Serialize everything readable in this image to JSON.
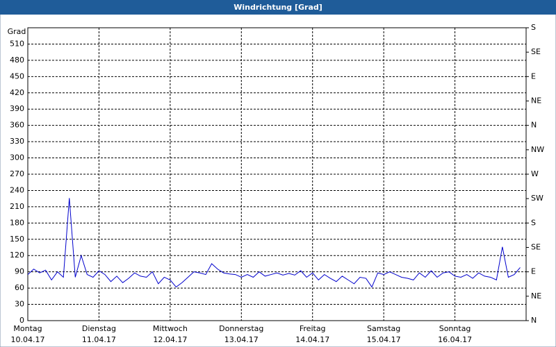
{
  "chart_data": {
    "type": "line",
    "title": "Windrichtung [Grad]",
    "y_label": "Grad",
    "x": [
      0,
      2,
      4,
      6,
      8,
      10,
      12,
      14,
      16,
      18,
      20,
      22,
      24,
      26,
      28,
      30,
      32,
      34,
      36,
      38,
      40,
      42,
      44,
      46,
      48,
      50,
      52,
      54,
      56,
      58,
      60,
      62,
      64,
      66,
      68,
      70,
      72,
      74,
      76,
      78,
      80,
      82,
      84,
      86,
      88,
      90,
      92,
      94,
      96,
      98,
      100,
      102,
      104,
      106,
      108,
      110,
      112,
      114,
      116,
      118,
      120,
      122,
      124,
      126,
      128,
      130,
      132,
      134,
      136,
      138,
      140,
      142,
      144,
      146,
      148,
      150,
      152,
      154,
      156,
      158,
      160,
      162,
      164,
      166
    ],
    "series": [
      {
        "name": "Windrichtung",
        "color": "#0000cc",
        "values": [
          85,
          95,
          88,
          93,
          75,
          90,
          80,
          226,
          80,
          120,
          85,
          80,
          92,
          85,
          72,
          82,
          70,
          78,
          88,
          82,
          80,
          90,
          68,
          80,
          75,
          62,
          70,
          80,
          90,
          88,
          85,
          105,
          95,
          88,
          86,
          85,
          80,
          85,
          80,
          90,
          82,
          85,
          88,
          84,
          87,
          84,
          92,
          80,
          88,
          75,
          85,
          78,
          72,
          82,
          75,
          68,
          80,
          78,
          62,
          88,
          85,
          90,
          85,
          80,
          78,
          75,
          88,
          80,
          92,
          80,
          88,
          90,
          82,
          80,
          85,
          78,
          88,
          82,
          80,
          75,
          136,
          80,
          85,
          98
        ]
      }
    ],
    "xlim": [
      0,
      168
    ],
    "xticks": [
      {
        "value": 0,
        "label": "Montag",
        "date": "10.04.17"
      },
      {
        "value": 24,
        "label": "Dienstag",
        "date": "11.04.17"
      },
      {
        "value": 48,
        "label": "Mittwoch",
        "date": "12.04.17"
      },
      {
        "value": 72,
        "label": "Donnerstag",
        "date": "13.04.17"
      },
      {
        "value": 96,
        "label": "Freitag",
        "date": "14.04.17"
      },
      {
        "value": 120,
        "label": "Samstag",
        "date": "15.04.17"
      },
      {
        "value": 144,
        "label": "Sonntag",
        "date": "16.04.17"
      }
    ],
    "ylim": [
      0,
      540
    ],
    "yticks": [
      0,
      30,
      60,
      90,
      120,
      150,
      180,
      210,
      240,
      270,
      300,
      330,
      360,
      390,
      420,
      450,
      480,
      510
    ],
    "y2lim": [
      0,
      540
    ],
    "y2ticks": [
      {
        "value": 0,
        "label": "N"
      },
      {
        "value": 45,
        "label": "NE"
      },
      {
        "value": 90,
        "label": "E"
      },
      {
        "value": 135,
        "label": "SE"
      },
      {
        "value": 180,
        "label": "S"
      },
      {
        "value": 225,
        "label": "SW"
      },
      {
        "value": 270,
        "label": "W"
      },
      {
        "value": 315,
        "label": "NW"
      },
      {
        "value": 360,
        "label": "N"
      },
      {
        "value": 405,
        "label": "NE"
      },
      {
        "value": 450,
        "label": "E"
      },
      {
        "value": 495,
        "label": "SE"
      },
      {
        "value": 540,
        "label": "S"
      }
    ],
    "grid": true
  }
}
